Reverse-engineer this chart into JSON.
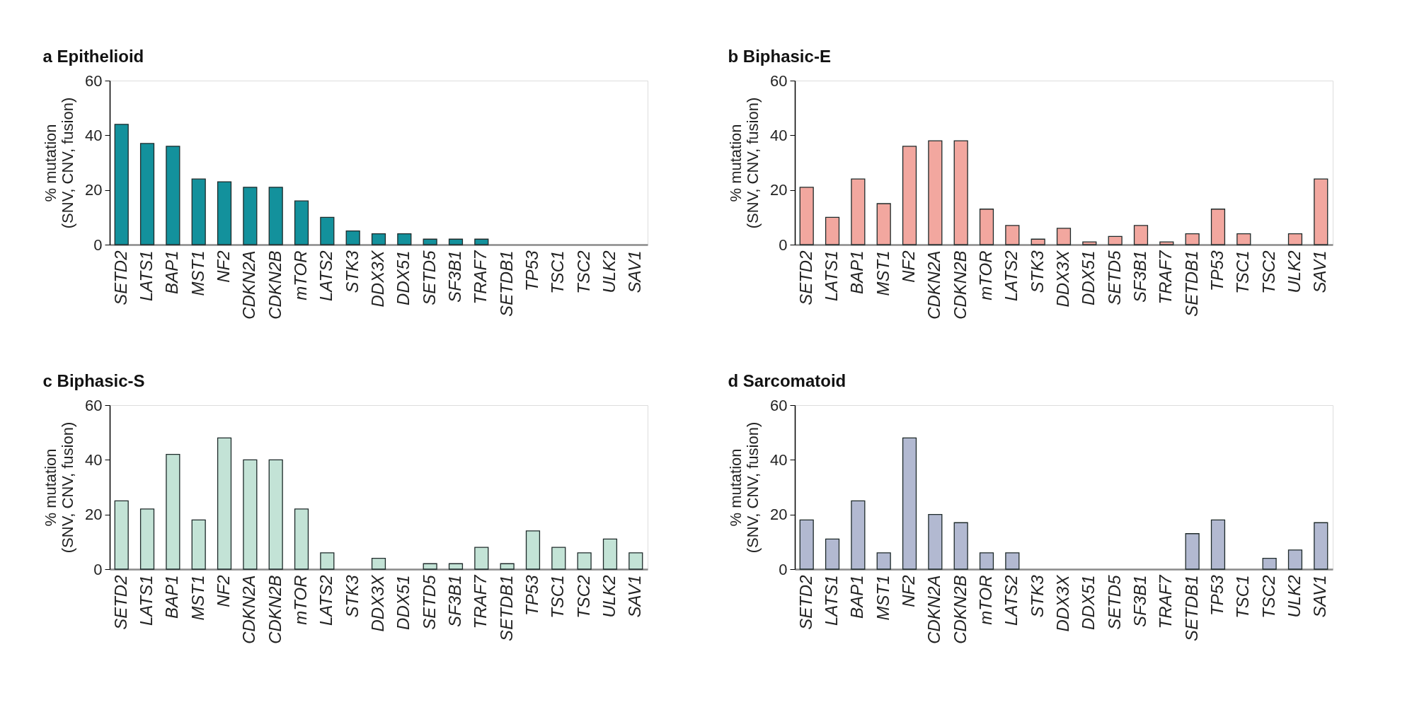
{
  "chart_data": [
    {
      "type": "bar",
      "title": "a Epithelioid",
      "ylabel": "% mutation\n(SNV, CNV, fusion)",
      "categories": [
        "SETD2",
        "LATS1",
        "BAP1",
        "MST1",
        "NF2",
        "CDKN2A",
        "CDKN2B",
        "mTOR",
        "LATS2",
        "STK3",
        "DDX3X",
        "DDX51",
        "SETD5",
        "SF3B1",
        "TRAF7",
        "SETDB1",
        "TP53",
        "TSC1",
        "TSC2",
        "ULK2",
        "SAV1"
      ],
      "values": [
        44,
        37,
        36,
        24,
        23,
        21,
        21,
        16,
        10,
        5,
        4,
        4,
        2,
        2,
        2,
        0,
        0,
        0,
        0,
        0,
        0
      ],
      "color": "#13919c",
      "ylim": [
        0,
        60
      ],
      "yticks": [
        0,
        20,
        40,
        60
      ]
    },
    {
      "type": "bar",
      "title": "b Biphasic-E",
      "ylabel": "% mutation\n(SNV, CNV, fusion)",
      "categories": [
        "SETD2",
        "LATS1",
        "BAP1",
        "MST1",
        "NF2",
        "CDKN2A",
        "CDKN2B",
        "mTOR",
        "LATS2",
        "STK3",
        "DDX3X",
        "DDX51",
        "SETD5",
        "SF3B1",
        "TRAF7",
        "SETDB1",
        "TP53",
        "TSC1",
        "TSC2",
        "ULK2",
        "SAV1"
      ],
      "values": [
        21,
        10,
        24,
        15,
        36,
        38,
        38,
        13,
        7,
        2,
        6,
        1,
        3,
        7,
        1,
        4,
        13,
        4,
        0,
        4,
        24
      ],
      "color": "#f2a79f",
      "ylim": [
        0,
        60
      ],
      "yticks": [
        0,
        20,
        40,
        60
      ]
    },
    {
      "type": "bar",
      "title": "c Biphasic-S",
      "ylabel": "% mutation\n(SNV, CNV, fusion)",
      "categories": [
        "SETD2",
        "LATS1",
        "BAP1",
        "MST1",
        "NF2",
        "CDKN2A",
        "CDKN2B",
        "mTOR",
        "LATS2",
        "STK3",
        "DDX3X",
        "DDX51",
        "SETD5",
        "SF3B1",
        "TRAF7",
        "SETDB1",
        "TP53",
        "TSC1",
        "TSC2",
        "ULK2",
        "SAV1"
      ],
      "values": [
        25,
        22,
        42,
        18,
        48,
        40,
        40,
        22,
        6,
        0,
        4,
        0,
        2,
        2,
        8,
        2,
        14,
        8,
        6,
        11,
        6
      ],
      "color": "#c3e3d6",
      "ylim": [
        0,
        60
      ],
      "yticks": [
        0,
        20,
        40,
        60
      ]
    },
    {
      "type": "bar",
      "title": "d Sarcomatoid",
      "ylabel": "% mutation\n(SNV, CNV, fusion)",
      "categories": [
        "SETD2",
        "LATS1",
        "BAP1",
        "MST1",
        "NF2",
        "CDKN2A",
        "CDKN2B",
        "mTOR",
        "LATS2",
        "STK3",
        "DDX3X",
        "DDX51",
        "SETD5",
        "SF3B1",
        "TRAF7",
        "SETDB1",
        "TP53",
        "TSC1",
        "TSC2",
        "ULK2",
        "SAV1"
      ],
      "values": [
        18,
        11,
        25,
        6,
        48,
        20,
        17,
        6,
        6,
        0,
        0,
        0,
        0,
        0,
        0,
        13,
        18,
        0,
        4,
        7,
        17
      ],
      "color": "#b2b9d1",
      "ylim": [
        0,
        60
      ],
      "yticks": [
        0,
        20,
        40,
        60
      ]
    }
  ]
}
